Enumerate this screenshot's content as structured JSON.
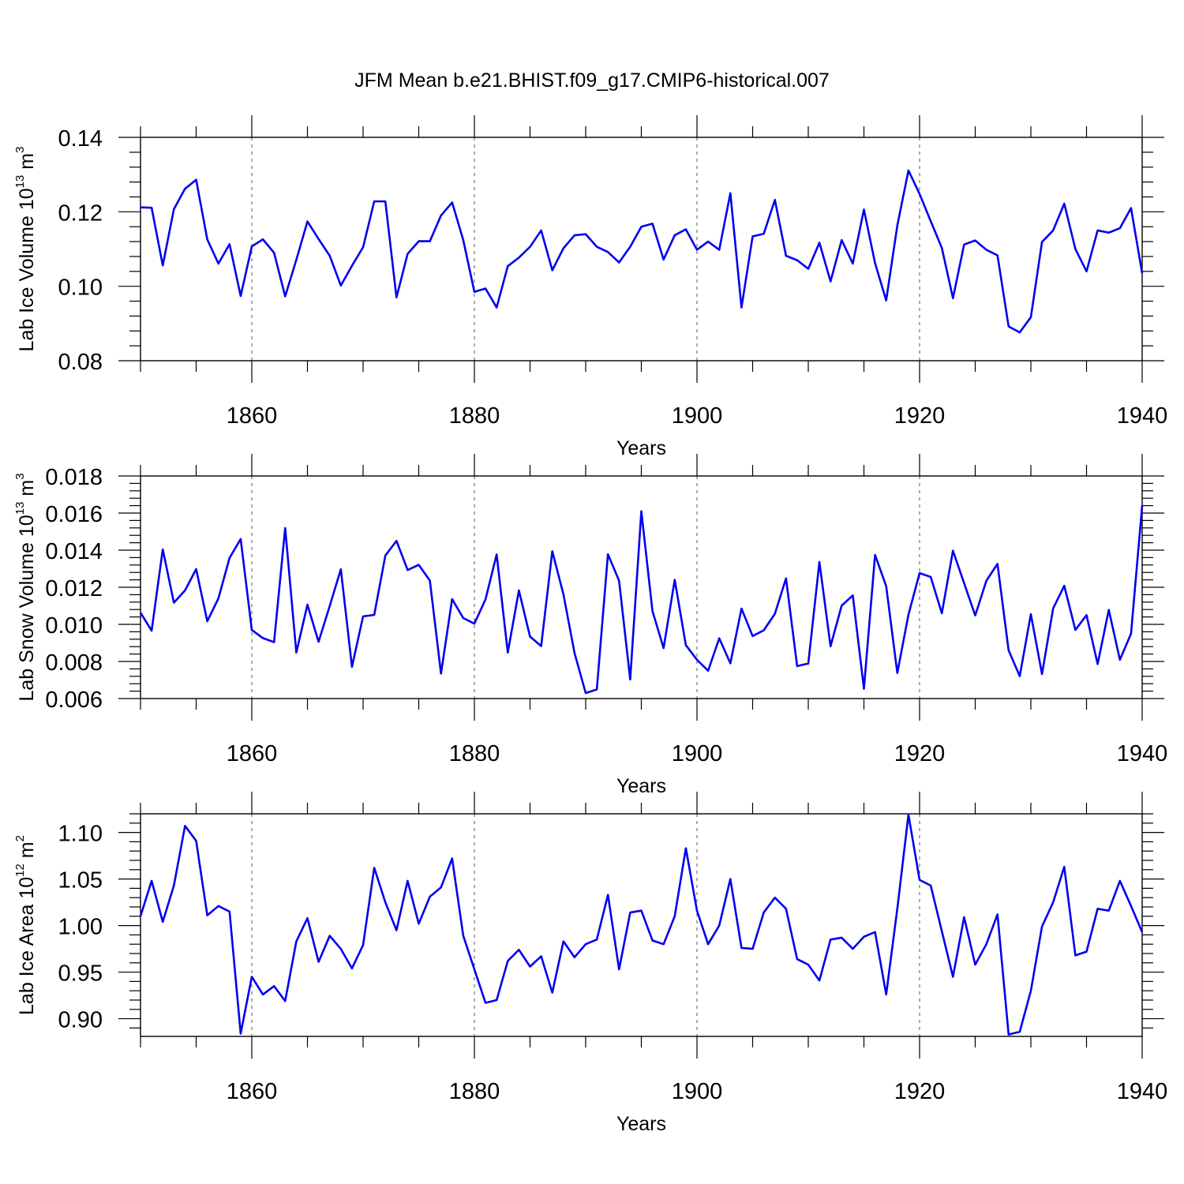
{
  "title": "JFM Mean b.e21.BHIST.f09_g17.CMIP6-historical.007",
  "chart_data": [
    {
      "type": "line",
      "ylabel": "Lab Ice Volume 10",
      "ylabel_sup": "13",
      "ylabel_unit": " m",
      "ylabel_unit_sup": "3",
      "xlabel": "Years",
      "xlim": [
        1850,
        1940
      ],
      "ylim": [
        0.08,
        0.14
      ],
      "x_ticks": [
        1860,
        1880,
        1900,
        1920,
        1940
      ],
      "y_ticks": [
        "0.08",
        "0.10",
        "0.12",
        "0.14"
      ],
      "y_tick_values": [
        0.08,
        0.1,
        0.12,
        0.14
      ],
      "grid": "dashed vertical at major x ticks",
      "color": "#0000f0",
      "start_year": 1850,
      "values": [
        0.1212,
        0.1211,
        0.1056,
        0.1207,
        0.1262,
        0.1286,
        0.1126,
        0.1061,
        0.1113,
        0.0974,
        0.1107,
        0.1126,
        0.109,
        0.0973,
        0.1071,
        0.1174,
        0.1127,
        0.1082,
        0.1002,
        0.1055,
        0.1105,
        0.1228,
        0.1228,
        0.097,
        0.1087,
        0.1121,
        0.1121,
        0.119,
        0.1225,
        0.1124,
        0.0985,
        0.0994,
        0.0943,
        0.1054,
        0.1077,
        0.1106,
        0.115,
        0.1043,
        0.1102,
        0.1137,
        0.114,
        0.1106,
        0.1092,
        0.1064,
        0.1106,
        0.116,
        0.1168,
        0.1072,
        0.1137,
        0.1153,
        0.1098,
        0.112,
        0.1098,
        0.125,
        0.0943,
        0.1134,
        0.1141,
        0.1232,
        0.1082,
        0.107,
        0.1047,
        0.1117,
        0.1013,
        0.1124,
        0.1061,
        0.1206,
        0.1062,
        0.0962,
        0.1163,
        0.1311,
        0.1248,
        0.1175,
        0.1103,
        0.0968,
        0.1112,
        0.1123,
        0.1098,
        0.1083,
        0.0892,
        0.0876,
        0.0917,
        0.1119,
        0.115,
        0.1222,
        0.11,
        0.104,
        0.115,
        0.1144,
        0.1156,
        0.121,
        0.1035
      ]
    },
    {
      "type": "line",
      "ylabel": "Lab Snow Volume 10",
      "ylabel_sup": "13",
      "ylabel_unit": " m",
      "ylabel_unit_sup": "3",
      "xlabel": "Years",
      "xlim": [
        1850,
        1940
      ],
      "ylim": [
        0.006,
        0.018
      ],
      "x_ticks": [
        1860,
        1880,
        1900,
        1920,
        1940
      ],
      "y_ticks": [
        "0.006",
        "0.008",
        "0.010",
        "0.012",
        "0.014",
        "0.016",
        "0.018"
      ],
      "y_tick_values": [
        0.006,
        0.008,
        0.01,
        0.012,
        0.014,
        0.016,
        0.018
      ],
      "grid": "dashed vertical at major x ticks",
      "color": "#0000f0",
      "start_year": 1850,
      "values": [
        0.01063,
        0.00966,
        0.01404,
        0.01117,
        0.01183,
        0.01298,
        0.01017,
        0.0114,
        0.01358,
        0.0146,
        0.0097,
        0.00926,
        0.00904,
        0.01519,
        0.00848,
        0.01106,
        0.00906,
        0.01099,
        0.01297,
        0.00771,
        0.01043,
        0.01051,
        0.01371,
        0.0145,
        0.01293,
        0.01321,
        0.01236,
        0.00735,
        0.01136,
        0.01034,
        0.01004,
        0.01135,
        0.01377,
        0.00848,
        0.01183,
        0.00934,
        0.00883,
        0.01394,
        0.01162,
        0.00845,
        0.0063,
        0.00649,
        0.01378,
        0.01235,
        0.00703,
        0.0161,
        0.01072,
        0.00872,
        0.0124,
        0.00888,
        0.00809,
        0.0075,
        0.00925,
        0.0079,
        0.01085,
        0.00937,
        0.00968,
        0.01057,
        0.01248,
        0.00775,
        0.00789,
        0.01336,
        0.00882,
        0.01101,
        0.01156,
        0.00653,
        0.01374,
        0.01206,
        0.00738,
        0.01052,
        0.01276,
        0.01256,
        0.0106,
        0.01397,
        0.01222,
        0.01048,
        0.01235,
        0.01326,
        0.0086,
        0.00721,
        0.01055,
        0.00732,
        0.01086,
        0.01208,
        0.0097,
        0.0105,
        0.00786,
        0.01078,
        0.00809,
        0.0095,
        0.0164
      ]
    },
    {
      "type": "line",
      "ylabel": "Lab Ice Area 10",
      "ylabel_sup": "12",
      "ylabel_unit": " m",
      "ylabel_unit_sup": "2",
      "xlabel": "Years",
      "xlim": [
        1850,
        1940
      ],
      "ylim": [
        0.881,
        1.12
      ],
      "x_ticks": [
        1860,
        1880,
        1900,
        1920,
        1940
      ],
      "y_ticks": [
        "0.90",
        "0.95",
        "1.00",
        "1.05",
        "1.10"
      ],
      "y_tick_values": [
        0.9,
        0.95,
        1.0,
        1.05,
        1.1
      ],
      "grid": "dashed vertical at major x ticks",
      "color": "#0000f0",
      "start_year": 1850,
      "values": [
        1.01,
        1.048,
        1.004,
        1.043,
        1.107,
        1.091,
        1.011,
        1.021,
        1.015,
        0.884,
        0.945,
        0.926,
        0.935,
        0.919,
        0.983,
        1.008,
        0.961,
        0.989,
        0.975,
        0.954,
        0.979,
        1.062,
        1.025,
        0.995,
        1.048,
        1.002,
        1.031,
        1.041,
        1.072,
        0.989,
        0.953,
        0.917,
        0.92,
        0.962,
        0.974,
        0.956,
        0.967,
        0.928,
        0.983,
        0.966,
        0.98,
        0.985,
        1.033,
        0.953,
        1.014,
        1.016,
        0.984,
        0.98,
        1.01,
        1.083,
        1.016,
        0.98,
        1.0,
        1.05,
        0.976,
        0.975,
        1.014,
        1.03,
        1.018,
        0.964,
        0.958,
        0.941,
        0.985,
        0.987,
        0.975,
        0.988,
        0.993,
        0.926,
        1.018,
        1.119,
        1.049,
        1.043,
        0.994,
        0.945,
        1.009,
        0.958,
        0.98,
        1.012,
        0.883,
        0.886,
        0.93,
        0.999,
        1.025,
        1.063,
        0.968,
        0.972,
        1.018,
        1.016,
        1.048,
        1.021,
        0.993
      ]
    }
  ]
}
